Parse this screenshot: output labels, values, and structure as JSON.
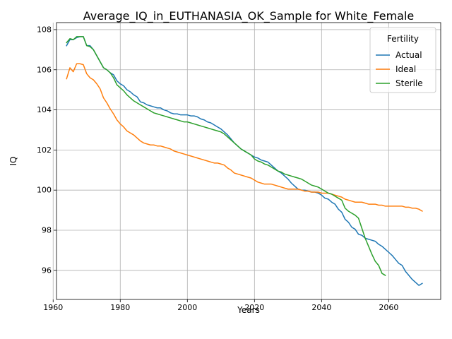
{
  "chart_data": {
    "type": "line",
    "title": "Average_IQ_in_EUTHANASIA_OK_Sample for White_Female",
    "xlabel": "Years",
    "ylabel": "IQ",
    "xlim": [
      1961,
      2075.5
    ],
    "ylim": [
      94.55,
      108.35
    ],
    "xticks": [
      1960,
      1980,
      2000,
      2020,
      2040,
      2060
    ],
    "yticks": [
      96,
      98,
      100,
      102,
      104,
      106,
      108
    ],
    "grid": true,
    "legend": {
      "title": "Fertility",
      "position": "upper right"
    },
    "series": [
      {
        "name": "Actual",
        "color": "#1f77b4",
        "x": [
          1964,
          1965,
          1966,
          1967,
          1968,
          1969,
          1970,
          1971,
          1972,
          1973,
          1974,
          1975,
          1976,
          1977,
          1978,
          1979,
          1980,
          1981,
          1982,
          1983,
          1984,
          1985,
          1986,
          1987,
          1988,
          1989,
          1990,
          1991,
          1992,
          1993,
          1994,
          1995,
          1996,
          1997,
          1998,
          1999,
          2000,
          2001,
          2002,
          2003,
          2004,
          2005,
          2006,
          2007,
          2008,
          2009,
          2010,
          2011,
          2012,
          2013,
          2014,
          2015,
          2016,
          2017,
          2018,
          2019,
          2020,
          2021,
          2022,
          2023,
          2024,
          2025,
          2026,
          2027,
          2028,
          2029,
          2030,
          2031,
          2032,
          2033,
          2034,
          2035,
          2036,
          2037,
          2038,
          2039,
          2040,
          2041,
          2042,
          2043,
          2044,
          2045,
          2046,
          2047,
          2048,
          2049,
          2050,
          2051,
          2052,
          2053,
          2054,
          2055,
          2056,
          2057,
          2058,
          2059,
          2060,
          2061,
          2062,
          2063,
          2064,
          2065,
          2066,
          2067,
          2068,
          2069,
          2070
        ],
        "y": [
          107.2,
          107.5,
          107.5,
          107.6,
          107.65,
          107.65,
          107.2,
          107.2,
          107.0,
          106.7,
          106.4,
          106.1,
          106.0,
          105.85,
          105.75,
          105.45,
          105.3,
          105.2,
          105.0,
          104.9,
          104.75,
          104.65,
          104.4,
          104.35,
          104.25,
          104.2,
          104.15,
          104.1,
          104.1,
          104.0,
          103.95,
          103.85,
          103.8,
          103.8,
          103.75,
          103.75,
          103.75,
          103.7,
          103.7,
          103.65,
          103.55,
          103.5,
          103.4,
          103.35,
          103.25,
          103.15,
          103.05,
          102.9,
          102.75,
          102.55,
          102.35,
          102.2,
          102.05,
          101.95,
          101.85,
          101.75,
          101.65,
          101.6,
          101.5,
          101.45,
          101.4,
          101.25,
          101.1,
          100.95,
          100.85,
          100.7,
          100.55,
          100.35,
          100.2,
          100.05,
          100.0,
          100.0,
          99.95,
          99.9,
          99.9,
          99.85,
          99.75,
          99.6,
          99.55,
          99.4,
          99.3,
          99.05,
          98.9,
          98.55,
          98.4,
          98.15,
          98.05,
          97.8,
          97.75,
          97.6,
          97.55,
          97.5,
          97.45,
          97.3,
          97.2,
          97.05,
          96.9,
          96.75,
          96.55,
          96.35,
          96.25,
          95.95,
          95.75,
          95.55,
          95.4,
          95.25,
          95.35
        ]
      },
      {
        "name": "Ideal",
        "color": "#ff7f0e",
        "x": [
          1964,
          1965,
          1966,
          1967,
          1968,
          1969,
          1970,
          1971,
          1972,
          1973,
          1974,
          1975,
          1976,
          1977,
          1978,
          1979,
          1980,
          1981,
          1982,
          1983,
          1984,
          1985,
          1986,
          1987,
          1988,
          1989,
          1990,
          1991,
          1992,
          1993,
          1994,
          1995,
          1996,
          1997,
          1998,
          1999,
          2000,
          2001,
          2002,
          2003,
          2004,
          2005,
          2006,
          2007,
          2008,
          2009,
          2010,
          2011,
          2012,
          2013,
          2014,
          2015,
          2016,
          2017,
          2018,
          2019,
          2020,
          2021,
          2022,
          2023,
          2024,
          2025,
          2026,
          2027,
          2028,
          2029,
          2030,
          2031,
          2032,
          2033,
          2034,
          2035,
          2036,
          2037,
          2038,
          2039,
          2040,
          2041,
          2042,
          2043,
          2044,
          2045,
          2046,
          2047,
          2048,
          2049,
          2050,
          2051,
          2052,
          2053,
          2054,
          2055,
          2056,
          2057,
          2058,
          2059,
          2060,
          2061,
          2062,
          2063,
          2064,
          2065,
          2066,
          2067,
          2068,
          2069,
          2070
        ],
        "y": [
          105.55,
          106.1,
          105.9,
          106.3,
          106.3,
          106.25,
          105.8,
          105.6,
          105.5,
          105.3,
          105.05,
          104.6,
          104.35,
          104.05,
          103.8,
          103.5,
          103.3,
          103.15,
          102.95,
          102.85,
          102.75,
          102.6,
          102.45,
          102.35,
          102.3,
          102.25,
          102.25,
          102.2,
          102.2,
          102.15,
          102.1,
          102.05,
          101.95,
          101.9,
          101.85,
          101.8,
          101.75,
          101.7,
          101.65,
          101.6,
          101.55,
          101.5,
          101.45,
          101.4,
          101.35,
          101.35,
          101.3,
          101.25,
          101.1,
          101.0,
          100.85,
          100.8,
          100.75,
          100.7,
          100.65,
          100.6,
          100.5,
          100.4,
          100.35,
          100.3,
          100.3,
          100.3,
          100.25,
          100.2,
          100.15,
          100.1,
          100.05,
          100.05,
          100.05,
          100.05,
          100.0,
          99.95,
          99.95,
          99.9,
          99.9,
          99.9,
          99.85,
          99.85,
          99.85,
          99.8,
          99.75,
          99.7,
          99.65,
          99.55,
          99.5,
          99.45,
          99.4,
          99.4,
          99.4,
          99.35,
          99.3,
          99.3,
          99.3,
          99.25,
          99.25,
          99.2,
          99.2,
          99.2,
          99.2,
          99.2,
          99.2,
          99.15,
          99.15,
          99.1,
          99.1,
          99.05,
          98.95
        ]
      },
      {
        "name": "Sterile",
        "color": "#2ca02c",
        "x": [
          1964,
          1965,
          1966,
          1967,
          1968,
          1969,
          1970,
          1971,
          1972,
          1973,
          1974,
          1975,
          1976,
          1977,
          1978,
          1979,
          1980,
          1981,
          1982,
          1983,
          1984,
          1985,
          1986,
          1987,
          1988,
          1989,
          1990,
          1991,
          1992,
          1993,
          1994,
          1995,
          1996,
          1997,
          1998,
          1999,
          2000,
          2001,
          2002,
          2003,
          2004,
          2005,
          2006,
          2007,
          2008,
          2009,
          2010,
          2011,
          2012,
          2013,
          2014,
          2015,
          2016,
          2017,
          2018,
          2019,
          2020,
          2021,
          2022,
          2023,
          2024,
          2025,
          2026,
          2027,
          2028,
          2029,
          2030,
          2031,
          2032,
          2033,
          2034,
          2035,
          2036,
          2037,
          2038,
          2039,
          2040,
          2041,
          2042,
          2043,
          2044,
          2045,
          2046,
          2047,
          2048,
          2049,
          2050,
          2051,
          2052,
          2053,
          2054,
          2055,
          2056,
          2057,
          2058,
          2059
        ],
        "y": [
          107.35,
          107.55,
          107.5,
          107.65,
          107.65,
          107.65,
          107.2,
          107.15,
          107.0,
          106.7,
          106.4,
          106.1,
          106.0,
          105.85,
          105.6,
          105.25,
          105.1,
          104.95,
          104.75,
          104.6,
          104.45,
          104.35,
          104.25,
          104.15,
          104.05,
          103.95,
          103.85,
          103.8,
          103.75,
          103.7,
          103.65,
          103.6,
          103.55,
          103.5,
          103.45,
          103.4,
          103.4,
          103.35,
          103.3,
          103.25,
          103.2,
          103.15,
          103.1,
          103.05,
          103.0,
          102.95,
          102.9,
          102.8,
          102.65,
          102.5,
          102.35,
          102.2,
          102.05,
          101.95,
          101.85,
          101.75,
          101.55,
          101.45,
          101.4,
          101.3,
          101.25,
          101.15,
          101.05,
          100.95,
          100.9,
          100.8,
          100.75,
          100.7,
          100.65,
          100.6,
          100.55,
          100.45,
          100.35,
          100.25,
          100.2,
          100.15,
          100.05,
          99.95,
          99.85,
          99.8,
          99.7,
          99.6,
          99.5,
          99.1,
          98.95,
          98.85,
          98.75,
          98.6,
          98.1,
          97.6,
          97.2,
          96.8,
          96.45,
          96.25,
          95.85,
          95.75
        ]
      }
    ]
  }
}
